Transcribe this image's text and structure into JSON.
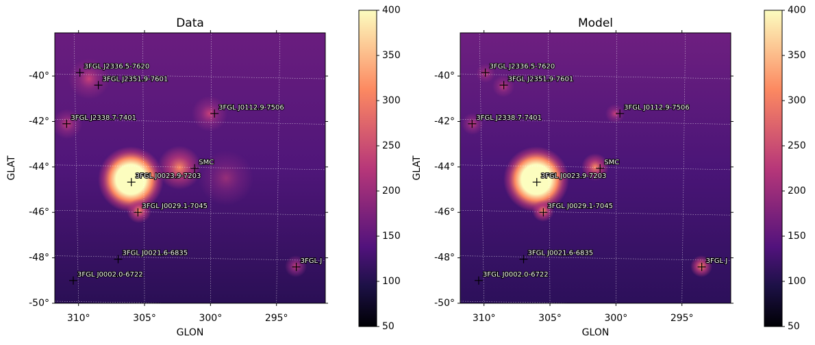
{
  "chart_data": [
    {
      "type": "skymap",
      "title": "Data",
      "xlabel": "GLON",
      "ylabel": "GLAT",
      "xlim": [
        311.8,
        291.3
      ],
      "ylim": [
        -50,
        -38.1
      ],
      "xticks": [
        {
          "value": 310,
          "label": "310°"
        },
        {
          "value": 305,
          "label": "305°"
        },
        {
          "value": 300,
          "label": "300°"
        },
        {
          "value": 295,
          "label": "295°"
        }
      ],
      "yticks": [
        {
          "value": -40,
          "label": "-40°"
        },
        {
          "value": -42,
          "label": "-42°"
        },
        {
          "value": -44,
          "label": "-44°"
        },
        {
          "value": -46,
          "label": "-46°"
        },
        {
          "value": -48,
          "label": "-48°"
        },
        {
          "value": -50,
          "label": "-50°"
        }
      ],
      "grid": true,
      "colormap": "magma",
      "clim": [
        50,
        400
      ],
      "cticks": [
        50,
        100,
        150,
        200,
        250,
        300,
        350,
        400
      ],
      "sources": [
        {
          "name": "3FGL J2336.5-7620",
          "glon": 309.9,
          "glat": -39.85
        },
        {
          "name": "3FGL J2351.9-7601",
          "glon": 308.5,
          "glat": -40.4
        },
        {
          "name": "3FGL J2338.7-7401",
          "glon": 310.9,
          "glat": -42.1
        },
        {
          "name": "3FGL J0112.9-7506",
          "glon": 299.7,
          "glat": -41.65
        },
        {
          "name": "SMC",
          "glon": 301.2,
          "glat": -44.06
        },
        {
          "name": "3FGL J0023.9-7203",
          "glon": 306.0,
          "glat": -44.67
        },
        {
          "name": "3FGL J0029.1-7045",
          "glon": 305.5,
          "glat": -46.0
        },
        {
          "name": "3FGL J0021.6-6835",
          "glon": 307.0,
          "glat": -48.06
        },
        {
          "name": "3FGL J0002.0-6722",
          "glon": 310.4,
          "glat": -49.0
        },
        {
          "name": "3FGL J",
          "glon": 293.5,
          "glat": -48.4
        }
      ]
    },
    {
      "type": "skymap",
      "title": "Model",
      "xlabel": "GLON",
      "ylabel": "GLAT",
      "xlim": [
        311.8,
        291.3
      ],
      "ylim": [
        -50,
        -38.1
      ],
      "xticks": [
        {
          "value": 310,
          "label": "310°"
        },
        {
          "value": 305,
          "label": "305°"
        },
        {
          "value": 300,
          "label": "300°"
        },
        {
          "value": 295,
          "label": "295°"
        }
      ],
      "yticks": [
        {
          "value": -40,
          "label": "-40°"
        },
        {
          "value": -42,
          "label": "-42°"
        },
        {
          "value": -44,
          "label": "-44°"
        },
        {
          "value": -46,
          "label": "-46°"
        },
        {
          "value": -48,
          "label": "-48°"
        },
        {
          "value": -50,
          "label": "-50°"
        }
      ],
      "grid": true,
      "colormap": "magma",
      "clim": [
        50,
        400
      ],
      "cticks": [
        50,
        100,
        150,
        200,
        250,
        300,
        350,
        400
      ],
      "sources": [
        {
          "name": "3FGL J2336.5-7620",
          "glon": 309.9,
          "glat": -39.85
        },
        {
          "name": "3FGL J2351.9-7601",
          "glon": 308.5,
          "glat": -40.4
        },
        {
          "name": "3FGL J2338.7-7401",
          "glon": 310.9,
          "glat": -42.1
        },
        {
          "name": "3FGL J0112.9-7506",
          "glon": 299.7,
          "glat": -41.65
        },
        {
          "name": "SMC",
          "glon": 301.2,
          "glat": -44.06
        },
        {
          "name": "3FGL J0023.9-7203",
          "glon": 306.0,
          "glat": -44.67
        },
        {
          "name": "3FGL J0029.1-7045",
          "glon": 305.5,
          "glat": -46.0
        },
        {
          "name": "3FGL J0021.6-6835",
          "glon": 307.0,
          "glat": -48.06
        },
        {
          "name": "3FGL J0002.0-6722",
          "glon": 310.4,
          "glat": -49.0
        },
        {
          "name": "3FGL J",
          "glon": 293.5,
          "glat": -48.4
        }
      ]
    }
  ]
}
